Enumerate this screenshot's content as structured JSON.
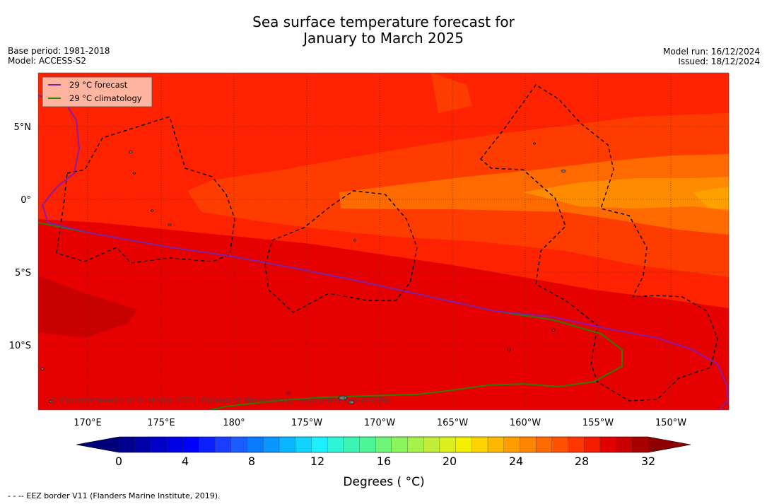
{
  "title": {
    "line1": "Sea surface temperature forecast for",
    "line2": "January to March 2025"
  },
  "meta_left": {
    "base_period": "Base period: 1981-2018",
    "model": "Model: ACCESS-S2"
  },
  "meta_right": {
    "model_run": "Model run: 16/12/2024",
    "issued": "Issued: 18/12/2024"
  },
  "legend": {
    "forecast_label": "29 °C  forecast",
    "climatology_label": "29 °C  climatology",
    "forecast_color": "#8b1aa6",
    "climatology_color": "#2e7d00"
  },
  "copyright": "© Commonwealth of Australia 2024, Bureau of Meteorology, supported by COSPPac",
  "axes": {
    "lon_labels": [
      "170°E",
      "175°E",
      "180°",
      "175°W",
      "170°W",
      "165°W",
      "160°W",
      "155°W",
      "150°W"
    ],
    "lat_labels": [
      "5°N",
      "0°",
      "5°S",
      "10°S"
    ]
  },
  "colorbar": {
    "tick_labels": [
      "0",
      "4",
      "8",
      "12",
      "16",
      "20",
      "24",
      "28",
      "32"
    ],
    "title": "Degrees ( °C)",
    "colors": [
      "#00008f",
      "#0000a8",
      "#0000c8",
      "#0000e6",
      "#0000ff",
      "#0c1fff",
      "#1a3dff",
      "#1a5cff",
      "#0a7aff",
      "#0a96ff",
      "#0ab4ff",
      "#12d2ff",
      "#1eefff",
      "#2ef5d8",
      "#3cf5b4",
      "#4ef598",
      "#6ef57a",
      "#8af55c",
      "#a6f24a",
      "#c2ee3a",
      "#dcef1e",
      "#f5ef00",
      "#ffd200",
      "#ffb800",
      "#ff9e00",
      "#ff8400",
      "#ff6a00",
      "#ff5000",
      "#ff3600",
      "#f51c00",
      "#e00000",
      "#c80000",
      "#a80000"
    ]
  },
  "footer": "- -  -- EEZ border V11 (Flanders Marine Institute, 2019)."
}
